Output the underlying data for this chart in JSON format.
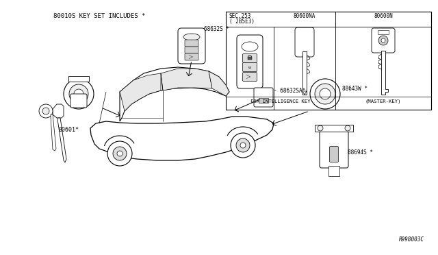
{
  "bg_color": "#ffffff",
  "line_color": "#000000",
  "text_color": "#000000",
  "title_text": "80010S KEY SET INCLUDES *",
  "part_numbers": {
    "68632S": "68632S *",
    "68632SA": "- 68632SA*",
    "80601": "80601*",
    "88643W": "88643W *",
    "88694S": "88694S *",
    "80600NA": "80600NA",
    "80600N": "80600N",
    "SEC253_line1": "SEC.253",
    "SEC253_line2": "( 2B5E3)",
    "R998003C": "R998003C"
  },
  "inset_labels": {
    "for_intelligence": "FOR INTELLIGENCE KEY",
    "master_key": "(MASTER-KEY)"
  },
  "figsize": [
    6.4,
    3.72
  ],
  "dpi": 100
}
